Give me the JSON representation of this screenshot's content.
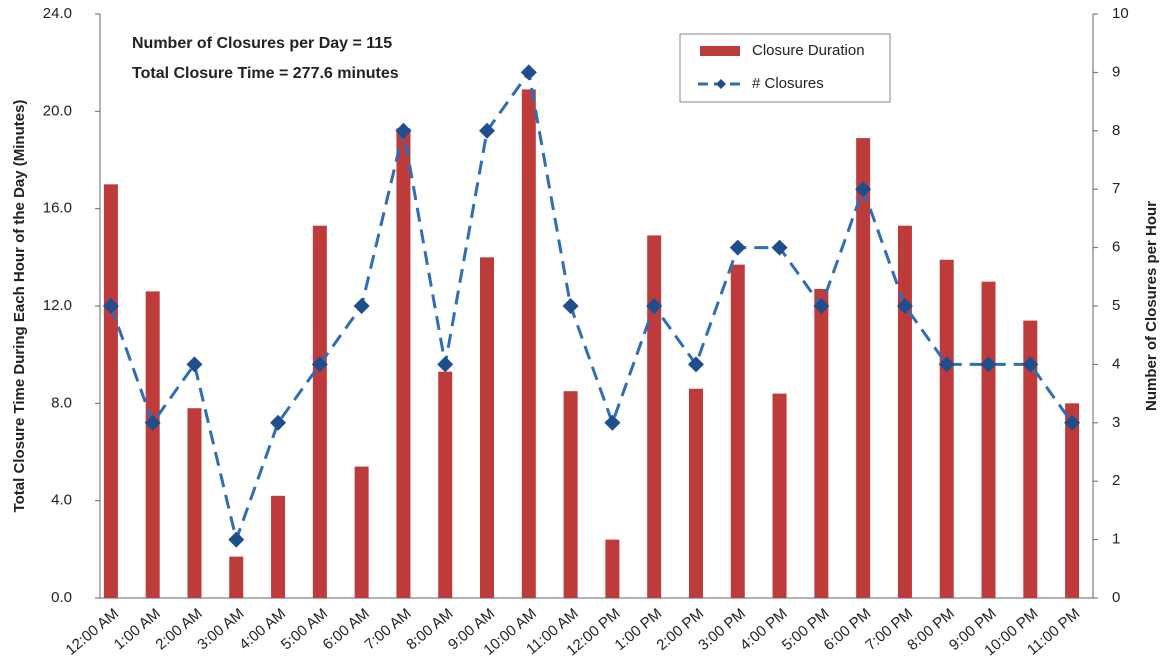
{
  "chart_data": {
    "type": "combo",
    "annotations": [
      "Number of Closures per Day = 115",
      "Total Closure Time  = 277.6 minutes"
    ],
    "y_label": "Total Closure Time During Each Hour of the Day (Minutes)",
    "y2_label": "Number of Closures per Hour",
    "categories": [
      "12:00 AM",
      "1:00 AM",
      "2:00 AM",
      "3:00 AM",
      "4:00 AM",
      "5:00 AM",
      "6:00 AM",
      "7:00 AM",
      "8:00 AM",
      "9:00 AM",
      "10:00 AM",
      "11:00 AM",
      "12:00 PM",
      "1:00 PM",
      "2:00 PM",
      "3:00 PM",
      "4:00 PM",
      "5:00 PM",
      "6:00 PM",
      "7:00 PM",
      "8:00 PM",
      "9:00 PM",
      "10:00 PM",
      "11:00 PM"
    ],
    "series": [
      {
        "name": "Closure Duration",
        "type": "bar",
        "color": "#be3b3b",
        "values": [
          17.0,
          12.6,
          7.8,
          1.7,
          4.2,
          15.3,
          5.4,
          19.3,
          9.3,
          14.0,
          20.9,
          8.5,
          2.4,
          14.9,
          8.6,
          13.7,
          8.4,
          12.7,
          18.9,
          15.3,
          13.9,
          13.0,
          11.4,
          8.0
        ]
      },
      {
        "name": "# Closures",
        "type": "line",
        "axis": "y2",
        "color": "#2f6db5",
        "marker_color": "#1f4e8c",
        "values": [
          5,
          3,
          4,
          1,
          3,
          4,
          5,
          8,
          4,
          8,
          9,
          5,
          3,
          5,
          4,
          6,
          6,
          5,
          7,
          5,
          4,
          4,
          4,
          3
        ]
      }
    ],
    "ylim": [
      0,
      24
    ],
    "yticks": [
      {
        "value": 0,
        "label": "0.0"
      },
      {
        "value": 4,
        "label": "4.0"
      },
      {
        "value": 8,
        "label": "8.0"
      },
      {
        "value": 12,
        "label": "12.0"
      },
      {
        "value": 16,
        "label": "16.0"
      },
      {
        "value": 20,
        "label": "20.0"
      },
      {
        "value": 24,
        "label": "24.0"
      }
    ],
    "y2lim": [
      0,
      10
    ],
    "y2ticks": [
      0,
      1,
      2,
      3,
      4,
      5,
      6,
      7,
      8,
      9,
      10
    ],
    "grid": false
  }
}
